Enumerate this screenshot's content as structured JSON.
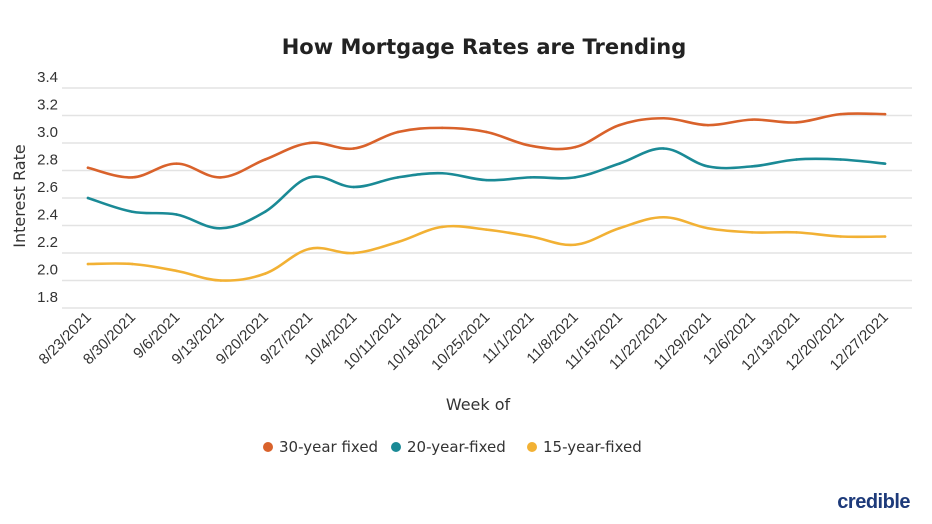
{
  "chart_data": {
    "type": "line",
    "title": "How Mortgage Rates are Trending",
    "xlabel": "Week of",
    "ylabel": "Interest Rate",
    "ylim": [
      1.8,
      3.4
    ],
    "yticks": [
      "3.4",
      "3.2",
      "3.0",
      "2.8",
      "2.6",
      "2.4",
      "2.2",
      "2.0",
      "1.8"
    ],
    "grid": true,
    "legend_position": "bottom",
    "categories": [
      "8/23/2021",
      "8/30/2021",
      "9/6/2021",
      "9/13/2021",
      "9/20/2021",
      "9/27/2021",
      "10/4/2021",
      "10/11/2021",
      "10/18/2021",
      "10/25/2021",
      "11/1/2021",
      "11/8/2021",
      "11/15/2021",
      "11/22/2021",
      "11/29/2021",
      "12/6/2021",
      "12/13/2021",
      "12/20/2021",
      "12/27/2021"
    ],
    "series": [
      {
        "name": "30-year fixed",
        "color": "#d9622b",
        "values": [
          2.82,
          2.75,
          2.85,
          2.75,
          2.88,
          3.0,
          2.96,
          3.08,
          3.11,
          3.08,
          2.98,
          2.97,
          3.13,
          3.18,
          3.13,
          3.17,
          3.15,
          3.21,
          3.21
        ]
      },
      {
        "name": "20-year-fixed",
        "color": "#1a8a96",
        "values": [
          2.6,
          2.5,
          2.48,
          2.38,
          2.5,
          2.75,
          2.68,
          2.75,
          2.78,
          2.73,
          2.75,
          2.75,
          2.85,
          2.96,
          2.83,
          2.83,
          2.88,
          2.88,
          2.85
        ]
      },
      {
        "name": "15-year-fixed",
        "color": "#f2b134",
        "values": [
          2.12,
          2.12,
          2.07,
          2.0,
          2.05,
          2.23,
          2.2,
          2.28,
          2.39,
          2.37,
          2.32,
          2.26,
          2.38,
          2.46,
          2.38,
          2.35,
          2.35,
          2.32,
          2.32
        ]
      }
    ]
  },
  "branding": {
    "logo_text": "credible",
    "logo_color": "#1d3a7a"
  }
}
